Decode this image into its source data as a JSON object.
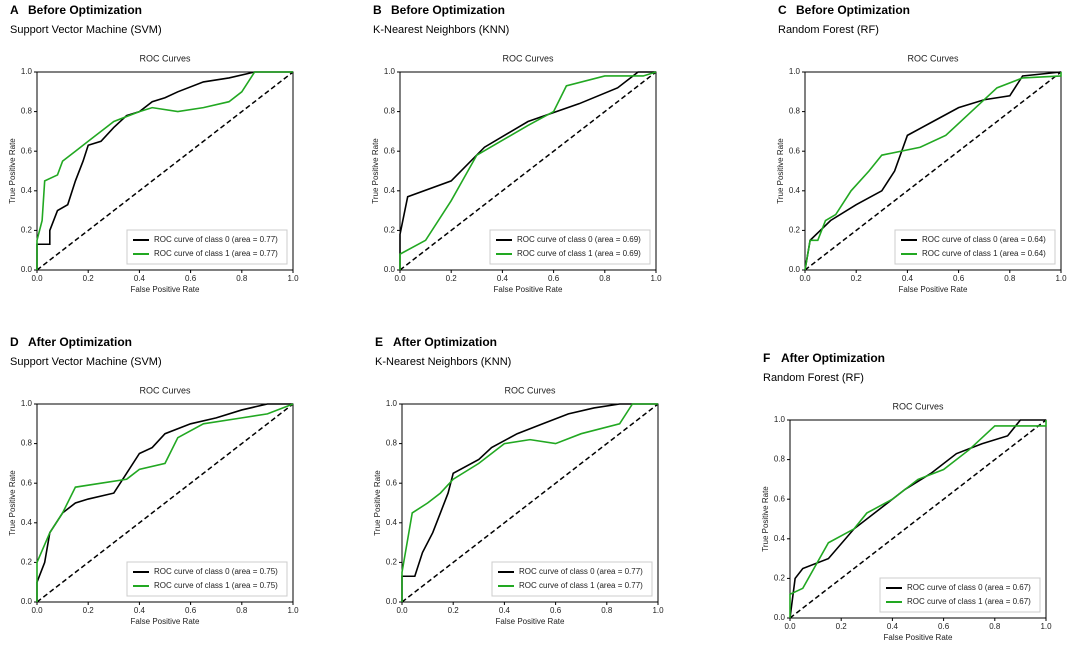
{
  "chart_data": [
    {
      "type": "line",
      "panel": "A",
      "heading": "Before Optimization",
      "subtitle": "Support Vector Machine (SVM)",
      "title": "ROC Curves",
      "xlabel": "False Positive Rate",
      "ylabel": "True Positive Rate",
      "xlim": [
        0,
        1
      ],
      "ylim": [
        0,
        1
      ],
      "xticks": [
        {
          "value": 0,
          "label": "0.0"
        },
        {
          "value": 0.2,
          "label": "0.2"
        },
        {
          "value": 0.4,
          "label": "0.4"
        },
        {
          "value": 0.6,
          "label": "0.6"
        },
        {
          "value": 0.8,
          "label": "0.8"
        },
        {
          "value": 1,
          "label": "1.0"
        }
      ],
      "yticks": [
        {
          "value": 0,
          "label": "0.0"
        },
        {
          "value": 0.2,
          "label": "0.2"
        },
        {
          "value": 0.4,
          "label": "0.4"
        },
        {
          "value": 0.6,
          "label": "0.6"
        },
        {
          "value": 0.8,
          "label": "0.8"
        },
        {
          "value": 1,
          "label": "1.0"
        }
      ],
      "grid": false,
      "legend": "lower right",
      "series": [
        {
          "name": "ROC curve of class 0 (area = 0.77)",
          "color": "#000000",
          "x": [
            0,
            0,
            0.05,
            0.05,
            0.08,
            0.12,
            0.15,
            0.18,
            0.2,
            0.25,
            0.3,
            0.35,
            0.4,
            0.45,
            0.5,
            0.55,
            0.65,
            0.75,
            0.85,
            1
          ],
          "values": [
            0,
            0.13,
            0.13,
            0.2,
            0.3,
            0.33,
            0.45,
            0.55,
            0.63,
            0.65,
            0.72,
            0.78,
            0.8,
            0.85,
            0.87,
            0.9,
            0.95,
            0.97,
            1,
            1
          ]
        },
        {
          "name": "ROC curve of class 1 (area = 0.77)",
          "color": "#22a822",
          "x": [
            0,
            0,
            0.02,
            0.03,
            0.08,
            0.1,
            0.15,
            0.2,
            0.25,
            0.3,
            0.4,
            0.45,
            0.55,
            0.65,
            0.75,
            0.8,
            0.85,
            1
          ],
          "values": [
            0,
            0.15,
            0.25,
            0.45,
            0.48,
            0.55,
            0.6,
            0.65,
            0.7,
            0.75,
            0.8,
            0.82,
            0.8,
            0.82,
            0.85,
            0.9,
            1,
            1
          ]
        }
      ]
    },
    {
      "type": "line",
      "panel": "B",
      "heading": "Before Optimization",
      "subtitle": "K-Nearest Neighbors (KNN)",
      "title": "ROC Curves",
      "xlabel": "False Positive Rate",
      "ylabel": "True Positive Rate",
      "xlim": [
        0,
        1
      ],
      "ylim": [
        0,
        1
      ],
      "xticks": [
        {
          "value": 0,
          "label": "0.0"
        },
        {
          "value": 0.2,
          "label": "0.2"
        },
        {
          "value": 0.4,
          "label": "0.4"
        },
        {
          "value": 0.6,
          "label": "0.6"
        },
        {
          "value": 0.8,
          "label": "0.8"
        },
        {
          "value": 1,
          "label": "1.0"
        }
      ],
      "yticks": [
        {
          "value": 0,
          "label": "0.0"
        },
        {
          "value": 0.2,
          "label": "0.2"
        },
        {
          "value": 0.4,
          "label": "0.4"
        },
        {
          "value": 0.6,
          "label": "0.6"
        },
        {
          "value": 0.8,
          "label": "0.8"
        },
        {
          "value": 1,
          "label": "1.0"
        }
      ],
      "grid": false,
      "legend": "lower right",
      "series": [
        {
          "name": "ROC curve of class 0 (area = 0.69)",
          "color": "#000000",
          "x": [
            0,
            0,
            0.03,
            0.2,
            0.33,
            0.5,
            0.7,
            0.85,
            0.93,
            1
          ],
          "values": [
            0,
            0.18,
            0.37,
            0.45,
            0.62,
            0.75,
            0.84,
            0.92,
            1,
            1
          ]
        },
        {
          "name": "ROC curve of class 1 (area = 0.69)",
          "color": "#22a822",
          "x": [
            0,
            0,
            0.1,
            0.2,
            0.3,
            0.5,
            0.6,
            0.65,
            0.8,
            0.95,
            1
          ],
          "values": [
            0,
            0.08,
            0.15,
            0.35,
            0.58,
            0.73,
            0.8,
            0.93,
            0.98,
            0.98,
            1
          ]
        }
      ]
    },
    {
      "type": "line",
      "panel": "C",
      "heading": "Before Optimization",
      "subtitle": "Random Forest (RF)",
      "title": "ROC Curves",
      "xlabel": "False Positive Rate",
      "ylabel": "True Positive Rate",
      "xlim": [
        0,
        1
      ],
      "ylim": [
        0,
        1
      ],
      "xticks": [
        {
          "value": 0,
          "label": "0.0"
        },
        {
          "value": 0.2,
          "label": "0.2"
        },
        {
          "value": 0.4,
          "label": "0.4"
        },
        {
          "value": 0.6,
          "label": "0.6"
        },
        {
          "value": 0.8,
          "label": "0.8"
        },
        {
          "value": 1,
          "label": "1.0"
        }
      ],
      "yticks": [
        {
          "value": 0,
          "label": "0.0"
        },
        {
          "value": 0.2,
          "label": "0.2"
        },
        {
          "value": 0.4,
          "label": "0.4"
        },
        {
          "value": 0.6,
          "label": "0.6"
        },
        {
          "value": 0.8,
          "label": "0.8"
        },
        {
          "value": 1,
          "label": "1.0"
        }
      ],
      "grid": false,
      "legend": "lower right",
      "series": [
        {
          "name": "ROC curve of class 0 (area = 0.64)",
          "color": "#000000",
          "x": [
            0,
            0.02,
            0.1,
            0.2,
            0.3,
            0.35,
            0.4,
            0.5,
            0.6,
            0.7,
            0.8,
            0.85,
            1
          ],
          "values": [
            0,
            0.15,
            0.25,
            0.33,
            0.4,
            0.5,
            0.68,
            0.75,
            0.82,
            0.86,
            0.88,
            0.98,
            1
          ]
        },
        {
          "name": "ROC curve of class 1 (area = 0.64)",
          "color": "#22a822",
          "x": [
            0,
            0.02,
            0.05,
            0.08,
            0.12,
            0.18,
            0.25,
            0.3,
            0.45,
            0.55,
            0.65,
            0.75,
            0.85,
            1,
            1
          ],
          "values": [
            0,
            0.15,
            0.15,
            0.25,
            0.28,
            0.4,
            0.5,
            0.58,
            0.62,
            0.68,
            0.8,
            0.92,
            0.97,
            0.98,
            1
          ]
        }
      ]
    },
    {
      "type": "line",
      "panel": "D",
      "heading": "After Optimization",
      "subtitle": "Support Vector Machine (SVM)",
      "title": "ROC Curves",
      "xlabel": "False Positive Rate",
      "ylabel": "True Positive Rate",
      "xlim": [
        0,
        1
      ],
      "ylim": [
        0,
        1
      ],
      "xticks": [
        {
          "value": 0,
          "label": "0.0"
        },
        {
          "value": 0.2,
          "label": "0.2"
        },
        {
          "value": 0.4,
          "label": "0.4"
        },
        {
          "value": 0.6,
          "label": "0.6"
        },
        {
          "value": 0.8,
          "label": "0.8"
        },
        {
          "value": 1,
          "label": "1.0"
        }
      ],
      "yticks": [
        {
          "value": 0,
          "label": "0.0"
        },
        {
          "value": 0.2,
          "label": "0.2"
        },
        {
          "value": 0.4,
          "label": "0.4"
        },
        {
          "value": 0.6,
          "label": "0.6"
        },
        {
          "value": 0.8,
          "label": "0.8"
        },
        {
          "value": 1,
          "label": "1.0"
        }
      ],
      "grid": false,
      "legend": "lower right",
      "series": [
        {
          "name": "ROC curve of class 0 (area = 0.75)",
          "color": "#000000",
          "x": [
            0,
            0,
            0.03,
            0.05,
            0.1,
            0.15,
            0.2,
            0.3,
            0.35,
            0.4,
            0.45,
            0.5,
            0.6,
            0.7,
            0.8,
            0.9,
            1
          ],
          "values": [
            0,
            0.1,
            0.2,
            0.35,
            0.45,
            0.5,
            0.52,
            0.55,
            0.65,
            0.75,
            0.78,
            0.85,
            0.9,
            0.93,
            0.97,
            1,
            1
          ]
        },
        {
          "name": "ROC curve of class 1 (area = 0.75)",
          "color": "#22a822",
          "x": [
            0,
            0,
            0.05,
            0.1,
            0.15,
            0.25,
            0.35,
            0.4,
            0.5,
            0.55,
            0.65,
            0.8,
            0.9,
            1
          ],
          "values": [
            0,
            0.2,
            0.35,
            0.45,
            0.58,
            0.6,
            0.62,
            0.67,
            0.7,
            0.83,
            0.9,
            0.93,
            0.95,
            1
          ]
        }
      ]
    },
    {
      "type": "line",
      "panel": "E",
      "heading": "After Optimization",
      "subtitle": "K-Nearest Neighbors (KNN)",
      "title": "ROC Curves",
      "xlabel": "False Positive Rate",
      "ylabel": "True Positive Rate",
      "xlim": [
        0,
        1
      ],
      "ylim": [
        0,
        1
      ],
      "xticks": [
        {
          "value": 0,
          "label": "0.0"
        },
        {
          "value": 0.2,
          "label": "0.2"
        },
        {
          "value": 0.4,
          "label": "0.4"
        },
        {
          "value": 0.6,
          "label": "0.6"
        },
        {
          "value": 0.8,
          "label": "0.8"
        },
        {
          "value": 1,
          "label": "1.0"
        }
      ],
      "yticks": [
        {
          "value": 0,
          "label": "0.0"
        },
        {
          "value": 0.2,
          "label": "0.2"
        },
        {
          "value": 0.4,
          "label": "0.4"
        },
        {
          "value": 0.6,
          "label": "0.6"
        },
        {
          "value": 0.8,
          "label": "0.8"
        },
        {
          "value": 1,
          "label": "1.0"
        }
      ],
      "grid": false,
      "legend": "lower right",
      "series": [
        {
          "name": "ROC curve of class 0 (area = 0.77)",
          "color": "#000000",
          "x": [
            0,
            0,
            0.05,
            0.08,
            0.12,
            0.15,
            0.18,
            0.2,
            0.3,
            0.35,
            0.45,
            0.55,
            0.65,
            0.75,
            0.85,
            1
          ],
          "values": [
            0,
            0.13,
            0.13,
            0.25,
            0.35,
            0.45,
            0.55,
            0.65,
            0.72,
            0.78,
            0.85,
            0.9,
            0.95,
            0.98,
            1,
            1
          ]
        },
        {
          "name": "ROC curve of class 1 (area = 0.77)",
          "color": "#22a822",
          "x": [
            0,
            0,
            0.02,
            0.04,
            0.1,
            0.15,
            0.2,
            0.3,
            0.4,
            0.5,
            0.6,
            0.7,
            0.85,
            0.9,
            1
          ],
          "values": [
            0,
            0.15,
            0.3,
            0.45,
            0.5,
            0.55,
            0.62,
            0.7,
            0.8,
            0.82,
            0.8,
            0.85,
            0.9,
            1,
            1
          ]
        }
      ]
    },
    {
      "type": "line",
      "panel": "F",
      "heading": "After Optimization",
      "subtitle": "Random Forest (RF)",
      "title": "ROC Curves",
      "xlabel": "False Positive Rate",
      "ylabel": "True Positive Rate",
      "xlim": [
        0,
        1
      ],
      "ylim": [
        0,
        1
      ],
      "xticks": [
        {
          "value": 0,
          "label": "0.0"
        },
        {
          "value": 0.2,
          "label": "0.2"
        },
        {
          "value": 0.4,
          "label": "0.4"
        },
        {
          "value": 0.6,
          "label": "0.6"
        },
        {
          "value": 0.8,
          "label": "0.8"
        },
        {
          "value": 1,
          "label": "1.0"
        }
      ],
      "yticks": [
        {
          "value": 0,
          "label": "0.0"
        },
        {
          "value": 0.2,
          "label": "0.2"
        },
        {
          "value": 0.4,
          "label": "0.4"
        },
        {
          "value": 0.6,
          "label": "0.6"
        },
        {
          "value": 0.8,
          "label": "0.8"
        },
        {
          "value": 1,
          "label": "1.0"
        }
      ],
      "grid": false,
      "legend": "lower right",
      "series": [
        {
          "name": "ROC curve of class 0 (area = 0.67)",
          "color": "#000000",
          "x": [
            0,
            0.02,
            0.05,
            0.15,
            0.25,
            0.35,
            0.45,
            0.55,
            0.65,
            0.75,
            0.85,
            0.9,
            1
          ],
          "values": [
            0,
            0.2,
            0.25,
            0.3,
            0.45,
            0.55,
            0.65,
            0.73,
            0.83,
            0.88,
            0.92,
            1,
            1
          ]
        },
        {
          "name": "ROC curve of class 1 (area = 0.67)",
          "color": "#22a822",
          "x": [
            0,
            0,
            0.05,
            0.15,
            0.25,
            0.3,
            0.4,
            0.5,
            0.6,
            0.7,
            0.8,
            1,
            1
          ],
          "values": [
            0,
            0.12,
            0.15,
            0.38,
            0.45,
            0.53,
            0.6,
            0.7,
            0.75,
            0.85,
            0.97,
            0.97,
            1
          ]
        }
      ]
    }
  ]
}
